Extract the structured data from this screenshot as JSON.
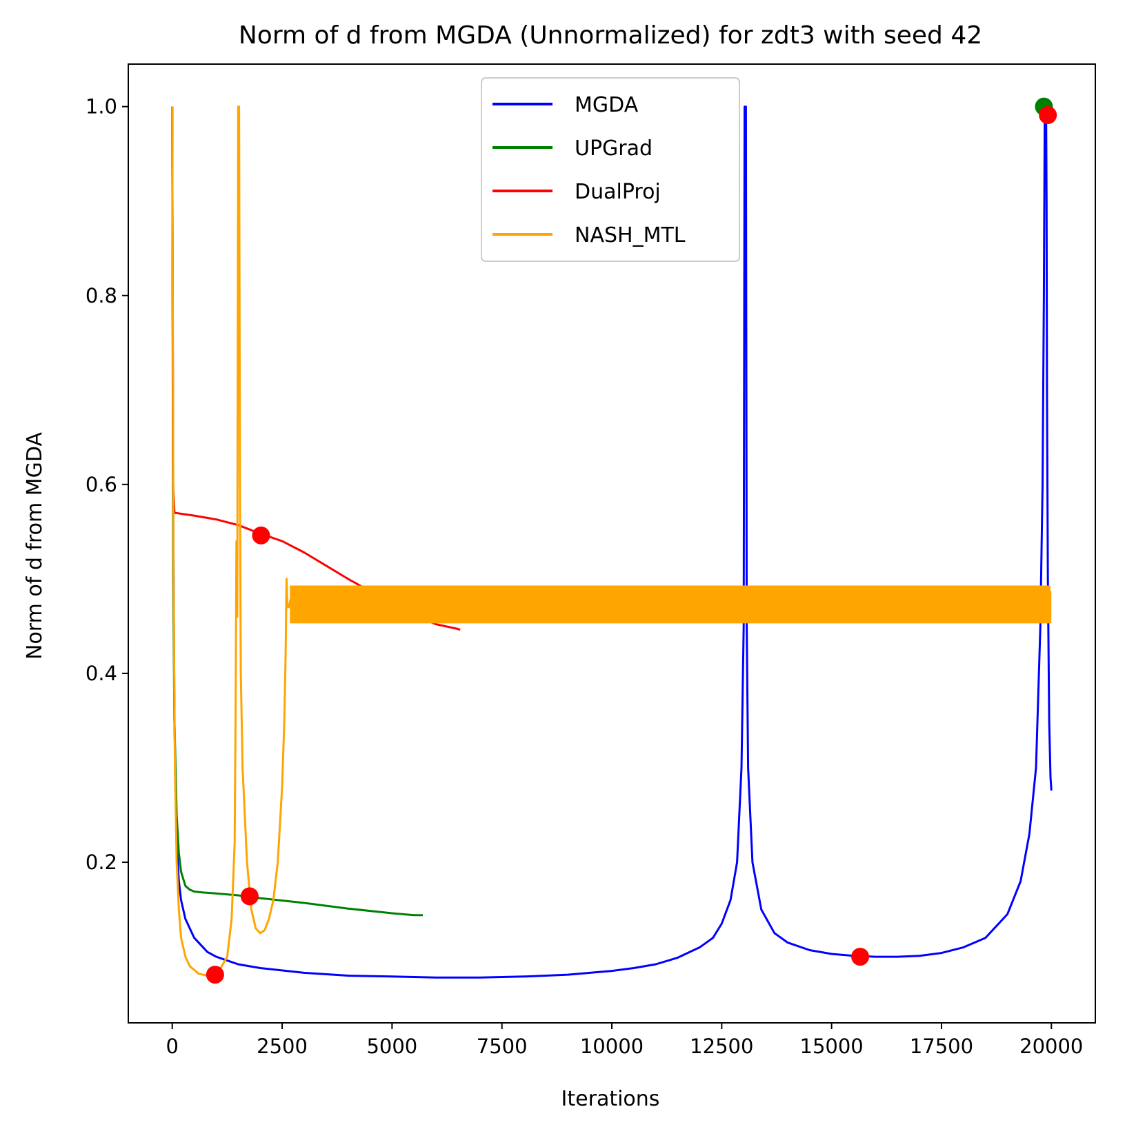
{
  "chart_data": {
    "type": "line",
    "title": "Norm of d from MGDA (Unnormalized) for zdt3 with seed 42",
    "xlabel": "Iterations",
    "ylabel": "Norm of d from MGDA",
    "xlim": [
      -1000,
      21000
    ],
    "ylim": [
      0.03,
      1.045
    ],
    "xticks": [
      0,
      2500,
      5000,
      7500,
      10000,
      12500,
      15000,
      17500,
      20000
    ],
    "xtick_labels": [
      "0",
      "2500",
      "5000",
      "7500",
      "10000",
      "12500",
      "15000",
      "17500",
      "20000"
    ],
    "yticks": [
      0.2,
      0.4,
      0.6,
      0.8,
      1.0
    ],
    "ytick_labels": [
      "0.2",
      "0.4",
      "0.6",
      "0.8",
      "1.0"
    ],
    "grid": false,
    "legend_position": "top-center",
    "series": [
      {
        "name": "MGDA",
        "color": "#0000ff",
        "x": [
          0,
          20,
          50,
          100,
          150,
          200,
          300,
          500,
          800,
          1000,
          1500,
          2000,
          3000,
          4000,
          5000,
          6000,
          6500,
          7000,
          8000,
          9000,
          10000,
          10500,
          11000,
          11500,
          12000,
          12300,
          12500,
          12700,
          12850,
          12950,
          13000,
          13020,
          13040,
          13050,
          13070,
          13100,
          13200,
          13400,
          13700,
          14000,
          14500,
          15000,
          15500,
          16000,
          16500,
          17000,
          17500,
          18000,
          18500,
          19000,
          19300,
          19500,
          19650,
          19750,
          19800,
          19830,
          19850,
          19870,
          19880,
          19890,
          19900,
          19920,
          19950,
          19980,
          20000
        ],
        "y": [
          1.0,
          0.6,
          0.35,
          0.22,
          0.18,
          0.16,
          0.14,
          0.12,
          0.105,
          0.1,
          0.092,
          0.088,
          0.083,
          0.08,
          0.079,
          0.078,
          0.078,
          0.078,
          0.079,
          0.081,
          0.085,
          0.088,
          0.092,
          0.099,
          0.11,
          0.12,
          0.135,
          0.16,
          0.2,
          0.3,
          0.45,
          1.0,
          1.0,
          1.0,
          0.45,
          0.3,
          0.2,
          0.15,
          0.125,
          0.115,
          0.107,
          0.103,
          0.101,
          0.1,
          0.1,
          0.101,
          0.104,
          0.11,
          0.12,
          0.145,
          0.18,
          0.23,
          0.3,
          0.45,
          0.6,
          0.8,
          1.0,
          1.0,
          1.0,
          0.9,
          0.7,
          0.5,
          0.35,
          0.29,
          0.276
        ]
      },
      {
        "name": "UPGrad",
        "color": "#008000",
        "x": [
          0,
          20,
          50,
          100,
          150,
          200,
          300,
          400,
          500,
          700,
          1000,
          1500,
          2000,
          3000,
          4000,
          5000,
          5500,
          5700
        ],
        "y": [
          1.0,
          0.5,
          0.35,
          0.25,
          0.21,
          0.19,
          0.175,
          0.171,
          0.169,
          0.168,
          0.167,
          0.165,
          0.162,
          0.157,
          0.151,
          0.146,
          0.144,
          0.144
        ]
      },
      {
        "name": "DualProj",
        "color": "#ff0000",
        "x": [
          0,
          20,
          50,
          500,
          1000,
          1500,
          2000,
          2500,
          3000,
          3500,
          4000,
          4500,
          5000,
          5500,
          6000,
          6500,
          6550
        ],
        "y": [
          1.0,
          0.6,
          0.57,
          0.567,
          0.563,
          0.557,
          0.548,
          0.54,
          0.528,
          0.514,
          0.5,
          0.487,
          0.474,
          0.462,
          0.452,
          0.447,
          0.446
        ]
      },
      {
        "name": "NASH_MTL",
        "color": "#ffa500",
        "x": [
          0,
          30,
          60,
          100,
          150,
          200,
          300,
          400,
          600,
          800,
          950,
          1100,
          1250,
          1350,
          1420,
          1440,
          1460,
          1480,
          1500,
          1520,
          1540,
          1560,
          1600,
          1700,
          1800,
          1900,
          2000,
          2100,
          2200,
          2300,
          2400,
          2500,
          2550,
          2580,
          2600,
          2620,
          2650,
          2700
        ],
        "y": [
          1.0,
          0.5,
          0.3,
          0.2,
          0.15,
          0.12,
          0.1,
          0.09,
          0.082,
          0.08,
          0.081,
          0.088,
          0.1,
          0.14,
          0.22,
          0.35,
          0.54,
          0.46,
          1.0,
          1.0,
          0.6,
          0.4,
          0.3,
          0.2,
          0.15,
          0.13,
          0.125,
          0.128,
          0.14,
          0.16,
          0.2,
          0.28,
          0.35,
          0.42,
          0.5,
          0.47,
          0.47,
          0.48
        ]
      }
    ],
    "nash_oscillation": {
      "x_start": 2700,
      "x_end": 20000,
      "y_min": 0.453,
      "y_max": 0.493
    },
    "markers": [
      {
        "x": 975,
        "y": 0.081,
        "color": "#ff0000"
      },
      {
        "x": 2020,
        "y": 0.546,
        "color": "#ff0000"
      },
      {
        "x": 1760,
        "y": 0.164,
        "color": "#ff0000"
      },
      {
        "x": 15650,
        "y": 0.1,
        "color": "#ff0000"
      },
      {
        "x": 19830,
        "y": 1.0,
        "color": "#008000"
      },
      {
        "x": 19920,
        "y": 0.991,
        "color": "#ff0000"
      }
    ]
  }
}
